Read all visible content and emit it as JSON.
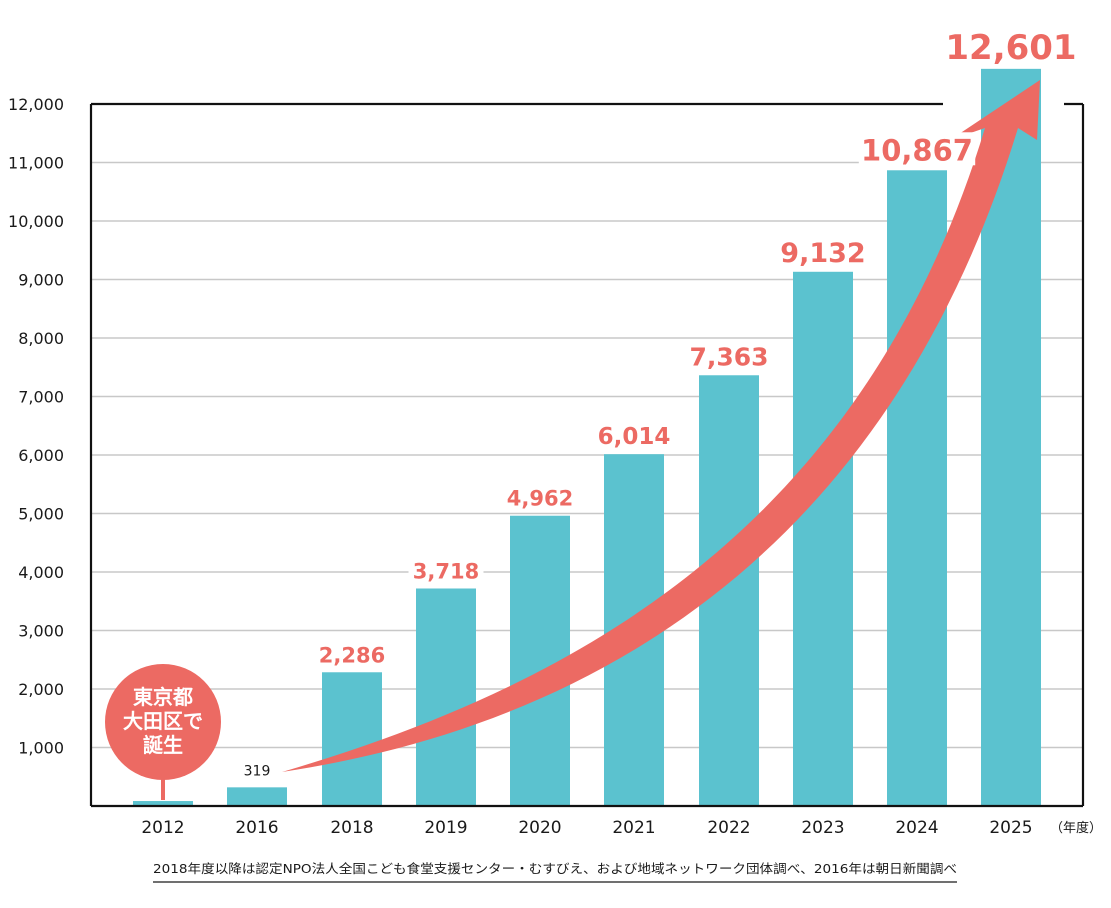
{
  "chart_data": {
    "type": "bar",
    "categories": [
      "2012",
      "2016",
      "2018",
      "2019",
      "2020",
      "2021",
      "2022",
      "2023",
      "2024",
      "2025"
    ],
    "values": [
      85,
      319,
      2286,
      3718,
      4962,
      6014,
      7363,
      9132,
      10867,
      12601
    ],
    "data_labels": [
      "",
      "319",
      "2,286",
      "3,718",
      "4,962",
      "6,014",
      "7,363",
      "9,132",
      "10,867",
      "12,601"
    ],
    "y_ticks": [
      1000,
      2000,
      3000,
      4000,
      5000,
      6000,
      7000,
      8000,
      9000,
      10000,
      11000,
      12000
    ],
    "y_tick_labels": [
      "1,000",
      "2,000",
      "3,000",
      "4,000",
      "5,000",
      "6,000",
      "7,000",
      "8,000",
      "9,000",
      "10,000",
      "11,000",
      "12,000"
    ],
    "ylim": [
      0,
      12000
    ],
    "x_unit": "（年度）",
    "grid": true,
    "callout": {
      "lines": [
        "東京都",
        "大田区で",
        "誕生"
      ]
    },
    "source_note": "2018年度以降は認定NPO法人全国こども食堂支援センター・むすびえ、および地域ネットワーク団体調べ、2016年は朝日新聞調べ",
    "colors": {
      "bar": "#5bc2cf",
      "accent": "#ec6a63",
      "axis": "#111111",
      "grid": "#c8c8c8"
    }
  }
}
